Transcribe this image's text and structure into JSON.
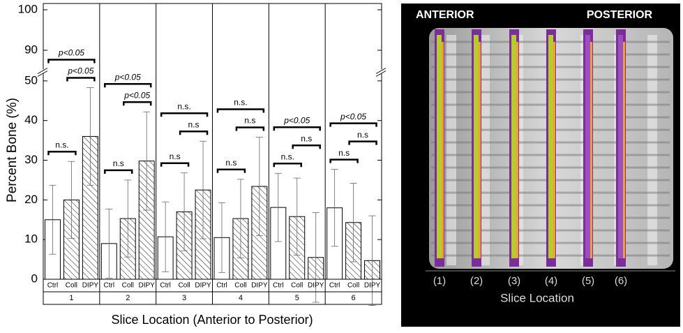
{
  "chart_data": {
    "type": "bar",
    "y_label": "Percent Bone (%)",
    "x_label": "Slice Location (Anterior to Posterior)",
    "ylim": [
      0,
      100
    ],
    "y_break": [
      52,
      85
    ],
    "yticks": [
      0,
      10,
      20,
      30,
      40,
      50,
      90,
      100
    ],
    "hatched": [
      "Coll",
      "DIPY"
    ],
    "groups": [
      {
        "name": "1",
        "categories": [
          "Ctrl",
          "Coll",
          "DIPY"
        ],
        "values": [
          15,
          20,
          36
        ],
        "errors": [
          8.7,
          9.7,
          12.3
        ],
        "brackets": [
          {
            "label": "n.s.",
            "pair": [
              "Ctrl",
              "Coll"
            ]
          },
          {
            "label": "p<0.05",
            "pair": [
              "Coll",
              "DIPY"
            ]
          },
          {
            "label": "p<0.05",
            "pair": [
              "Ctrl",
              "DIPY"
            ]
          }
        ]
      },
      {
        "name": "2",
        "categories": [
          "Ctrl",
          "Coll",
          "DIPY"
        ],
        "values": [
          9,
          15.3,
          29.8
        ],
        "errors": [
          8.7,
          9.7,
          12.4
        ],
        "brackets": [
          {
            "label": "n.s",
            "pair": [
              "Ctrl",
              "Coll"
            ]
          },
          {
            "label": "p<0.05",
            "pair": [
              "Coll",
              "DIPY"
            ]
          },
          {
            "label": "p<0.05",
            "pair": [
              "Ctrl",
              "DIPY"
            ]
          }
        ]
      },
      {
        "name": "3",
        "categories": [
          "Ctrl",
          "Coll",
          "DIPY"
        ],
        "values": [
          10.7,
          17,
          22.5
        ],
        "errors": [
          8.8,
          9.8,
          12.3
        ],
        "brackets": [
          {
            "label": "n.s",
            "pair": [
              "Ctrl",
              "Coll"
            ]
          },
          {
            "label": "n.s",
            "pair": [
              "Coll",
              "DIPY"
            ]
          },
          {
            "label": "n.s.",
            "pair": [
              "Ctrl",
              "DIPY"
            ]
          }
        ]
      },
      {
        "name": "4",
        "categories": [
          "Ctrl",
          "Coll",
          "DIPY"
        ],
        "values": [
          10.5,
          15.3,
          23.4
        ],
        "errors": [
          8.8,
          9.9,
          12.4
        ],
        "brackets": [
          {
            "label": "n.s",
            "pair": [
              "Ctrl",
              "Coll"
            ]
          },
          {
            "label": "n.s",
            "pair": [
              "Coll",
              "DIPY"
            ]
          },
          {
            "label": "n.s.",
            "pair": [
              "Ctrl",
              "DIPY"
            ]
          }
        ]
      },
      {
        "name": "5",
        "categories": [
          "Ctrl",
          "Coll",
          "DIPY"
        ],
        "values": [
          18.1,
          15.8,
          5.5
        ],
        "errors": [
          8.6,
          9.7,
          11.3
        ],
        "brackets": [
          {
            "label": "n.s.",
            "pair": [
              "Ctrl",
              "Coll"
            ]
          },
          {
            "label": "n.s",
            "pair": [
              "Coll",
              "DIPY"
            ]
          },
          {
            "label": "p<0.05",
            "pair": [
              "Ctrl",
              "DIPY"
            ]
          }
        ]
      },
      {
        "name": "6",
        "categories": [
          "Ctrl",
          "Coll",
          "DIPY"
        ],
        "values": [
          18,
          14.3,
          4.7
        ],
        "errors": [
          9.7,
          9.9,
          11.3
        ],
        "brackets": [
          {
            "label": "n.s",
            "pair": [
              "Ctrl",
              "Coll"
            ]
          },
          {
            "label": "n.s",
            "pair": [
              "Coll",
              "DIPY"
            ]
          },
          {
            "label": "p<0.05",
            "pair": [
              "Ctrl",
              "DIPY"
            ]
          }
        ]
      }
    ]
  },
  "image_panel": {
    "labels_top": [
      "ANTERIOR",
      "POSTERIOR"
    ],
    "slices": [
      "(1)",
      "(2)",
      "(3)",
      "(4)",
      "(5)",
      "(6)"
    ],
    "x_label": "Slice Location"
  }
}
